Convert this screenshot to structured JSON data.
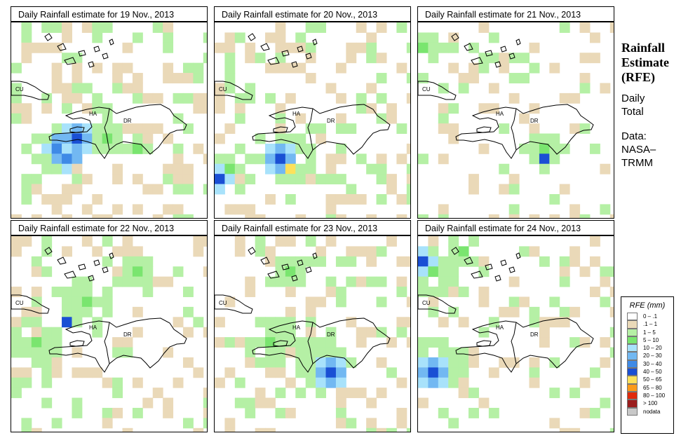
{
  "panels": [
    {
      "title": "Daily Rainfall estimate for  19 Nov., 2013",
      "seed": 19,
      "hot": [
        [
          4,
          12,
          3.2
        ],
        [
          9,
          11,
          2.0
        ],
        [
          12,
          12,
          1.4
        ]
      ],
      "blues": [
        [
          5,
          12,
          2.2
        ],
        [
          6,
          11,
          1.8
        ]
      ],
      "wet": 0.36,
      "yellow": false
    },
    {
      "title": "Daily Rainfall estimate for  20 Nov., 2013",
      "seed": 20,
      "hot": [
        [
          7,
          13,
          3.0
        ],
        [
          3,
          12,
          2.5
        ],
        [
          1,
          14,
          2
        ]
      ],
      "blues": [
        [
          6,
          13,
          1.6
        ],
        [
          0,
          15,
          1.2
        ]
      ],
      "wet": 0.32,
      "yellow": true
    },
    {
      "title": "Daily Rainfall estimate for  21 Nov., 2013",
      "seed": 21,
      "hot": [
        [
          12,
          12,
          2.6
        ],
        [
          0,
          2,
          2
        ],
        [
          10,
          4,
          2
        ]
      ],
      "blues": [
        [
          12,
          13,
          0.9
        ]
      ],
      "wet": 0.2,
      "yellow": false
    },
    {
      "title": "Daily Rainfall estimate for  22 Nov., 2013",
      "seed": 22,
      "hot": [
        [
          2,
          10,
          3.0
        ],
        [
          7,
          6,
          3.0
        ],
        [
          12,
          3,
          2.5
        ]
      ],
      "blues": [
        [
          5,
          8,
          0.7
        ]
      ],
      "wet": 0.26,
      "yellow": false
    },
    {
      "title": "Daily Rainfall estimate for  23 Nov., 2013",
      "seed": 23,
      "hot": [
        [
          10,
          12,
          3.2
        ],
        [
          5,
          10,
          2.8
        ],
        [
          7,
          3,
          2.5
        ]
      ],
      "blues": [
        [
          11,
          13,
          1.8
        ]
      ],
      "wet": 0.33,
      "yellow": false
    },
    {
      "title": "Daily Rainfall estimate for  24 Nov., 2013",
      "seed": 24,
      "hot": [
        [
          1,
          3,
          3.0
        ],
        [
          2,
          12,
          3.0
        ],
        [
          4,
          1,
          2.5
        ]
      ],
      "blues": [
        [
          0,
          2,
          1.2
        ],
        [
          1,
          13,
          1.6
        ]
      ],
      "wet": 0.25,
      "yellow": false
    }
  ],
  "sidebar": {
    "title_line1": "Rainfall",
    "title_line2": "Estimate",
    "title_line3": "(RFE)",
    "period_line1": "Daily",
    "period_line2": "Total",
    "source_line1": "Data:",
    "source_line2": "NASA–",
    "source_line3": "TRMM"
  },
  "legend": {
    "title": "RFE (mm)",
    "items": [
      {
        "label": "0 – .1",
        "color": "#ffffff"
      },
      {
        "label": ".1 – 1",
        "color": "#ead9b8"
      },
      {
        "label": "1 – 5",
        "color": "#b5f0a5"
      },
      {
        "label": "5 – 10",
        "color": "#7ae56f"
      },
      {
        "label": "10 – 20",
        "color": "#a8e2fb"
      },
      {
        "label": "20 – 30",
        "color": "#72b8f2"
      },
      {
        "label": "30 – 40",
        "color": "#3f8ae6"
      },
      {
        "label": "40 – 50",
        "color": "#1a4fd4"
      },
      {
        "label": "50 – 65",
        "color": "#fde15a"
      },
      {
        "label": "65 – 80",
        "color": "#fb9a1a"
      },
      {
        "label": "80 – 100",
        "color": "#e02a0c"
      },
      {
        "label": "> 100",
        "color": "#9a1d1d"
      },
      {
        "label": "nodata",
        "color": "#c8c8c8"
      }
    ]
  },
  "map_labels": {
    "cuba": "CU",
    "haiti": "HA",
    "dr": "DR"
  }
}
